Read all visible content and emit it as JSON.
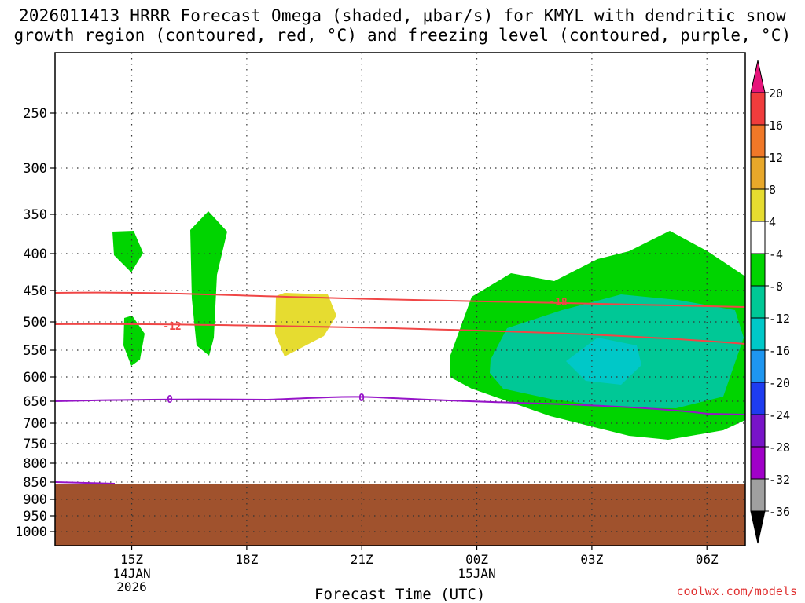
{
  "title": {
    "line1": "2026011413 HRRR Forecast Omega (shaded, μbar/s) for KMYL with dendritic snow",
    "line2": "growth region (contoured, red, °C) and freezing level (contoured, purple, °C)"
  },
  "chart_data": {
    "type": "contour-timeheight",
    "xlabel": "Forecast Time (UTC)",
    "x_ticks": [
      {
        "hour": 15,
        "label": "15Z",
        "sub": [
          "14JAN",
          "2026"
        ]
      },
      {
        "hour": 18,
        "label": "18Z",
        "sub": []
      },
      {
        "hour": 21,
        "label": "21Z",
        "sub": []
      },
      {
        "hour": 24,
        "label": "00Z",
        "sub": [
          "15JAN"
        ]
      },
      {
        "hour": 27,
        "label": "03Z",
        "sub": []
      },
      {
        "hour": 30,
        "label": "06Z",
        "sub": []
      }
    ],
    "xlim_hours": [
      13,
      31
    ],
    "y_ticks_hpa": [
      250,
      300,
      350,
      400,
      450,
      500,
      550,
      600,
      650,
      700,
      750,
      800,
      850,
      900,
      950,
      1000
    ],
    "ylim_hpa": [
      200,
      1025
    ],
    "grid": true,
    "surface_pressure_hpa": 855,
    "colorbar": {
      "labels": [
        "20",
        "16",
        "12",
        "8",
        "4",
        "-4",
        "-8",
        "-12",
        "-16",
        "-20",
        "-24",
        "-28",
        "-32",
        "-36"
      ],
      "colors": [
        "#f03c3c",
        "#f07828",
        "#e8a82a",
        "#e6dc30",
        "#ffffff",
        "#00d400",
        "#00c896",
        "#00c8c8",
        "#1e96f0",
        "#1e3cf0",
        "#7814c8",
        "#a000c8",
        "#a0a0a0"
      ],
      "top_arrow_color": "#e6147a",
      "bottom_arrow_color": "#000000"
    },
    "contours": {
      "dgz_labels": [
        "-12",
        "-18"
      ],
      "freezing_labels": [
        "0",
        "0"
      ],
      "dgz_color": "#f04646",
      "freezing_color": "#9614c8"
    }
  },
  "credit": "coolwx.com/models"
}
